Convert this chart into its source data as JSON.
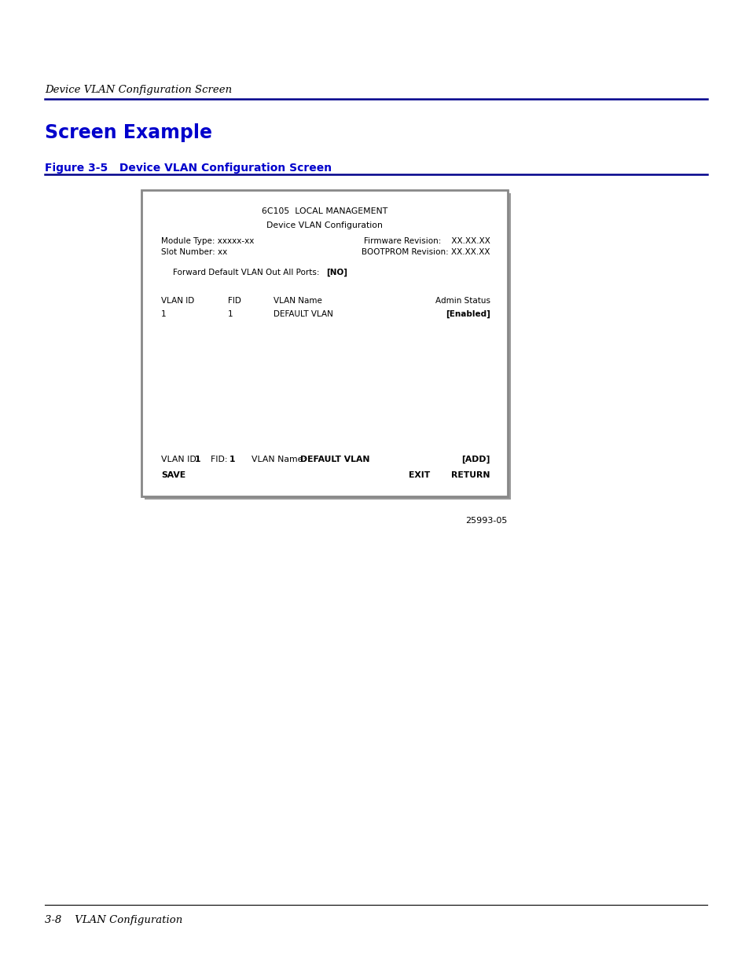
{
  "page_bg": "#ffffff",
  "header_italic_text": "Device VLAN Configuration Screen",
  "header_line_color": "#00008B",
  "section_title": "Screen Example",
  "section_title_color": "#0000CC",
  "figure_label": "Figure 3-5   Device VLAN Configuration Screen",
  "figure_label_color": "#0000CC",
  "figure_line_color": "#00008B",
  "footer_italic_text": "3-8    VLAN Configuration",
  "figure_number": "25993-05",
  "screen_box_border_color": "#888888",
  "screen_box_inner_color": "#ffffff",
  "screen_title1": "6C105  LOCAL MANAGEMENT",
  "screen_title2": "Device VLAN Configuration",
  "module_type": "Module Type: xxxxx-xx",
  "slot_number": "Slot Number: xx",
  "firmware_label": "Firmware Revision:    XX.XX.XX",
  "bootprom_label": "BOOTPROM Revision: XX.XX.XX",
  "forward_default_label": "Forward Default VLAN Out All Ports:  ",
  "forward_default_value": "[NO]",
  "col_vlan_id": "VLAN ID",
  "col_fid": "FID",
  "col_vlan_name": "VLAN Name",
  "col_admin_status": "Admin Status",
  "row1_vlan_id": "1",
  "row1_fid": "1",
  "row1_vlan_name": "DEFAULT VLAN",
  "row1_admin_status": "[Enabled]",
  "bottom_vlan_id_label": "VLAN ID: ",
  "bottom_vlan_id_val": "1",
  "bottom_fid_label": "FID: ",
  "bottom_fid_val": "1",
  "bottom_vlan_name_label": "VLAN Name: ",
  "bottom_vlan_name_value": "DEFAULT VLAN",
  "bottom_add": "[ADD]",
  "bottom_save": "SAVE",
  "bottom_exit": "EXIT",
  "bottom_return": "RETURN",
  "text_color": "#000000",
  "footer_line_color": "#000000"
}
